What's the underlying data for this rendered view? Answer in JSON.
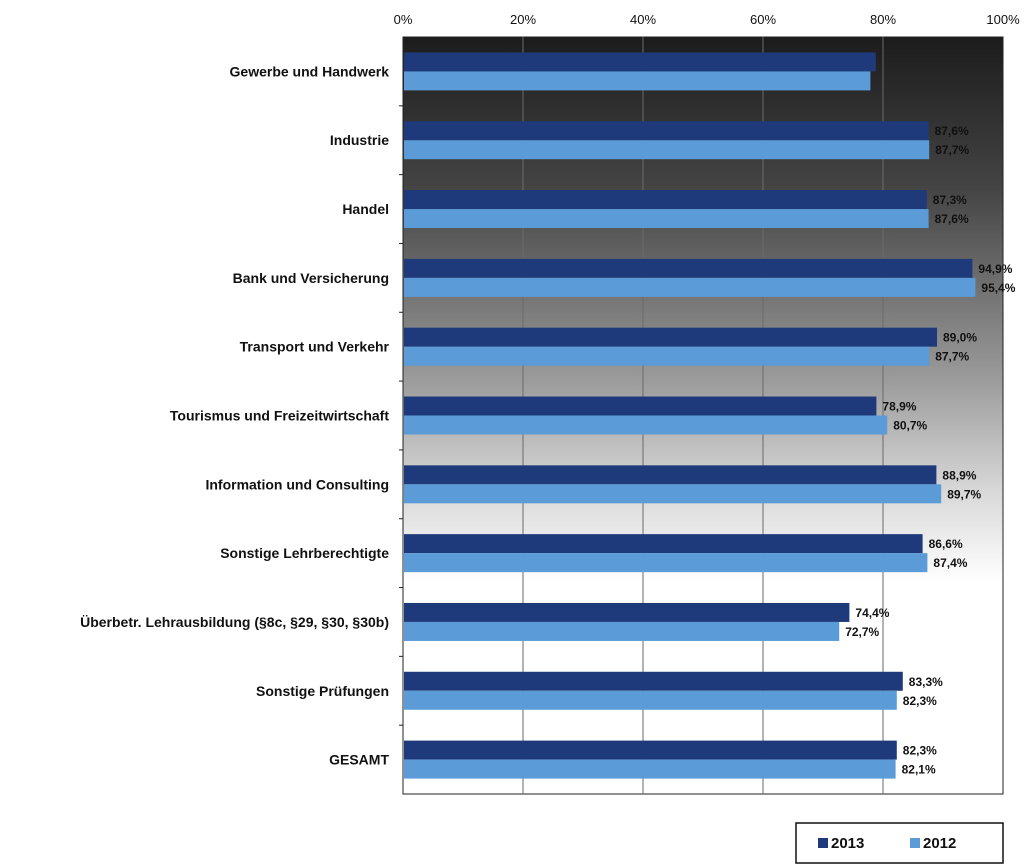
{
  "chart_data": {
    "type": "bar",
    "orientation": "horizontal",
    "title": "",
    "xlabel": "",
    "ylabel": "",
    "xlim": [
      0,
      100
    ],
    "x_ticks": [
      "0%",
      "20%",
      "40%",
      "60%",
      "80%",
      "100%"
    ],
    "x_tick_values": [
      0,
      20,
      40,
      60,
      80,
      100
    ],
    "grid": true,
    "legend_position": "bottom-right",
    "categories": [
      "Gewerbe und Handwerk",
      "Industrie",
      "Handel",
      "Bank und Versicherung",
      "Transport und Verkehr",
      "Tourismus und Freizeitwirtschaft",
      "Information und Consulting",
      "Sonstige Lehrberechtigte",
      "Überbetr. Lehrausbildung (§8c, §29, §30, §30b)",
      "Sonstige Prüfungen",
      "GESAMT"
    ],
    "series": [
      {
        "name": "2013",
        "color": "#1f3a7a",
        "values": [
          78.8,
          87.6,
          87.3,
          94.9,
          89.0,
          78.9,
          88.9,
          86.6,
          74.4,
          83.3,
          82.3
        ],
        "labels": [
          "",
          "87,6%",
          "87,3%",
          "94,9%",
          "89,0%",
          "78,9%",
          "88,9%",
          "86,6%",
          "74,4%",
          "83,3%",
          "82,3%"
        ]
      },
      {
        "name": "2012",
        "color": "#5b9bd8",
        "values": [
          77.9,
          87.7,
          87.6,
          95.4,
          87.7,
          80.7,
          89.7,
          87.4,
          72.7,
          82.3,
          82.1
        ],
        "labels": [
          "",
          "87,7%",
          "87,6%",
          "95,4%",
          "87,7%",
          "80,7%",
          "89,7%",
          "87,4%",
          "72,7%",
          "82,3%",
          "82,1%"
        ]
      }
    ]
  },
  "legend": {
    "items": [
      {
        "label": "2013",
        "color": "#1f3a7a"
      },
      {
        "label": "2012",
        "color": "#5b9bd8"
      }
    ]
  }
}
